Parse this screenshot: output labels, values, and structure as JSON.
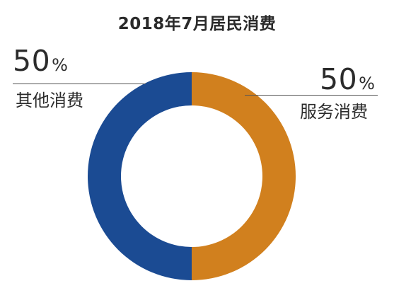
{
  "chart_data": {
    "type": "pie",
    "variant": "donut",
    "title": "2018年7月居民消费",
    "slices": [
      {
        "label": "服务消费",
        "value": 50,
        "display_value": "50",
        "unit": "%",
        "color": "#D1801E"
      },
      {
        "label": "其他消费",
        "value": 50,
        "display_value": "50",
        "unit": "%",
        "color": "#1B4B93"
      }
    ],
    "legend": "none",
    "labels_placement": "outside-with-leader-lines"
  }
}
